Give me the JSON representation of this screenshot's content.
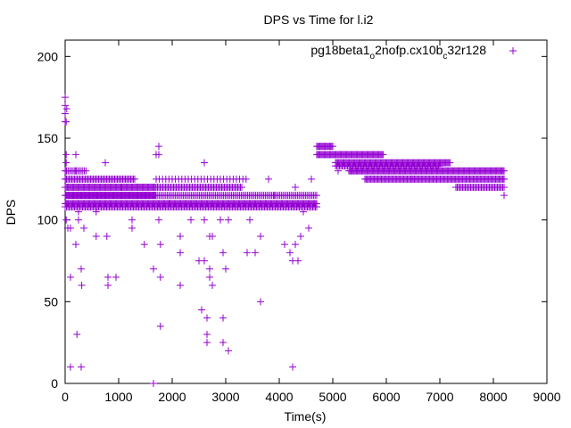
{
  "chart_data": {
    "type": "scatter",
    "title": "DPS vs Time for l.i2",
    "xlabel": "Time(s)",
    "ylabel": "DPS",
    "xlim": [
      0,
      9000
    ],
    "ylim": [
      0,
      210
    ],
    "x_ticks": [
      "0",
      "1000",
      "2000",
      "3000",
      "4000",
      "5000",
      "6000",
      "7000",
      "8000",
      "9000"
    ],
    "y_ticks": [
      "0",
      "50",
      "100",
      "150",
      "200"
    ],
    "grid": false,
    "legend_position": "top-right",
    "marker": "+",
    "color": "#9400d3",
    "series": [
      {
        "name_parts": [
          "pg18beta1",
          "o",
          "2nofp.cx10b",
          "c",
          "32r128"
        ],
        "bands": [
          {
            "x_start": 0,
            "x_end": 4700,
            "y": 110,
            "step": 20
          },
          {
            "x_start": 0,
            "x_end": 4700,
            "y": 108,
            "step": 25
          },
          {
            "x_start": 0,
            "x_end": 1700,
            "y": 115,
            "step": 15
          },
          {
            "x_start": 1700,
            "x_end": 4700,
            "y": 115,
            "step": 30
          },
          {
            "x_start": 0,
            "x_end": 1700,
            "y": 120,
            "step": 20
          },
          {
            "x_start": 1700,
            "x_end": 3300,
            "y": 120,
            "step": 25
          },
          {
            "x_start": 0,
            "x_end": 1300,
            "y": 125,
            "step": 25
          },
          {
            "x_start": 1700,
            "x_end": 3400,
            "y": 125,
            "step": 60
          },
          {
            "x_start": 0,
            "x_end": 400,
            "y": 130,
            "step": 30
          },
          {
            "x_start": 4700,
            "x_end": 5000,
            "y": 145,
            "step": 20
          },
          {
            "x_start": 4700,
            "x_end": 5950,
            "y": 140,
            "step": 20
          },
          {
            "x_start": 5050,
            "x_end": 7200,
            "y": 135,
            "step": 20
          },
          {
            "x_start": 5050,
            "x_end": 7000,
            "y": 133,
            "step": 25
          },
          {
            "x_start": 5300,
            "x_end": 8200,
            "y": 130,
            "step": 20
          },
          {
            "x_start": 5600,
            "x_end": 8200,
            "y": 125,
            "step": 22
          },
          {
            "x_start": 7300,
            "x_end": 8200,
            "y": 120,
            "step": 25
          }
        ],
        "points": [
          [
            0,
            175
          ],
          [
            0,
            170
          ],
          [
            0,
            165
          ],
          [
            0,
            160
          ],
          [
            20,
            160
          ],
          [
            30,
            168
          ],
          [
            20,
            140
          ],
          [
            20,
            135
          ],
          [
            20,
            130
          ],
          [
            20,
            125
          ],
          [
            20,
            110
          ],
          [
            20,
            100
          ],
          [
            50,
            95
          ],
          [
            100,
            95
          ],
          [
            100,
            65
          ],
          [
            100,
            10
          ],
          [
            200,
            140
          ],
          [
            200,
            85
          ],
          [
            220,
            30
          ],
          [
            300,
            70
          ],
          [
            310,
            60
          ],
          [
            300,
            10
          ],
          [
            250,
            100
          ],
          [
            250,
            105
          ],
          [
            350,
            95
          ],
          [
            200,
            130
          ],
          [
            580,
            105
          ],
          [
            580,
            90
          ],
          [
            750,
            135
          ],
          [
            780,
            90
          ],
          [
            800,
            65
          ],
          [
            800,
            60
          ],
          [
            950,
            65
          ],
          [
            1050,
            120
          ],
          [
            1250,
            100
          ],
          [
            1250,
            95
          ],
          [
            1480,
            85
          ],
          [
            1650,
            70
          ],
          [
            1650,
            0
          ],
          [
            1700,
            140
          ],
          [
            1750,
            145
          ],
          [
            1750,
            140
          ],
          [
            1780,
            85
          ],
          [
            1780,
            65
          ],
          [
            1780,
            35
          ],
          [
            1750,
            100
          ],
          [
            1950,
            110
          ],
          [
            2150,
            90
          ],
          [
            2150,
            80
          ],
          [
            2150,
            60
          ],
          [
            2350,
            100
          ],
          [
            2400,
            110
          ],
          [
            2500,
            75
          ],
          [
            2550,
            45
          ],
          [
            2600,
            75
          ],
          [
            2600,
            100
          ],
          [
            2600,
            135
          ],
          [
            2650,
            40
          ],
          [
            2650,
            30
          ],
          [
            2650,
            25
          ],
          [
            2700,
            70
          ],
          [
            2700,
            65
          ],
          [
            2700,
            90
          ],
          [
            2750,
            90
          ],
          [
            2750,
            60
          ],
          [
            2700,
            120
          ],
          [
            2900,
            100
          ],
          [
            2950,
            40
          ],
          [
            2950,
            25
          ],
          [
            2950,
            80
          ],
          [
            3000,
            70
          ],
          [
            3050,
            20
          ],
          [
            3050,
            100
          ],
          [
            3100,
            110
          ],
          [
            3400,
            80
          ],
          [
            3450,
            100
          ],
          [
            3550,
            80
          ],
          [
            3650,
            90
          ],
          [
            3650,
            50
          ],
          [
            3800,
            125
          ],
          [
            3900,
            115
          ],
          [
            4100,
            85
          ],
          [
            4200,
            80
          ],
          [
            4250,
            75
          ],
          [
            4250,
            10
          ],
          [
            4300,
            85
          ],
          [
            4300,
            120
          ],
          [
            4350,
            75
          ],
          [
            4400,
            90
          ],
          [
            4450,
            105
          ],
          [
            4550,
            95
          ],
          [
            4600,
            125
          ],
          [
            5100,
            130
          ],
          [
            6000,
            130
          ],
          [
            6300,
            130
          ],
          [
            6500,
            125
          ],
          [
            7550,
            120
          ],
          [
            7800,
            130
          ],
          [
            8200,
            115
          ],
          [
            8200,
            125
          ]
        ]
      }
    ]
  }
}
